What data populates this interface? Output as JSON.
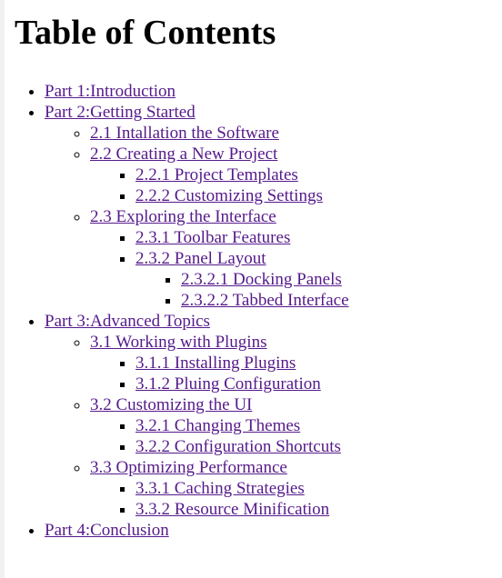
{
  "title": "Table of Contents",
  "link_color": "#551a8b",
  "toc": [
    {
      "label": "Part 1:Introduction"
    },
    {
      "label": "Part 2:Getting Started",
      "children": [
        {
          "label": "2.1 Intallation the Software"
        },
        {
          "label": "2.2 Creating a New Project",
          "children": [
            {
              "label": "2.2.1 Project Templates"
            },
            {
              "label": "2.2.2 Customizing Settings"
            }
          ]
        },
        {
          "label": "2.3 Exploring the Interface",
          "children": [
            {
              "label": "2.3.1 Toolbar Features"
            },
            {
              "label": "2.3.2 Panel Layout",
              "children": [
                {
                  "label": "2.3.2.1 Docking Panels"
                },
                {
                  "label": "2.3.2.2 Tabbed Interface"
                }
              ]
            }
          ]
        }
      ]
    },
    {
      "label": "Part 3:Advanced Topics",
      "children": [
        {
          "label": "3.1 Working with Plugins",
          "children": [
            {
              "label": "3.1.1 Installing Plugins"
            },
            {
              "label": "3.1.2 Pluing Configuration"
            }
          ]
        },
        {
          "label": "3.2 Customizing the UI",
          "children": [
            {
              "label": "3.2.1 Changing Themes"
            },
            {
              "label": "3.2.2 Configuration Shortcuts"
            }
          ]
        },
        {
          "label": "3.3 Optimizing Performance",
          "children": [
            {
              "label": "3.3.1 Caching Strategies"
            },
            {
              "label": "3.3.2 Resource Minification"
            }
          ]
        }
      ]
    },
    {
      "label": "Part 4:Conclusion"
    }
  ]
}
